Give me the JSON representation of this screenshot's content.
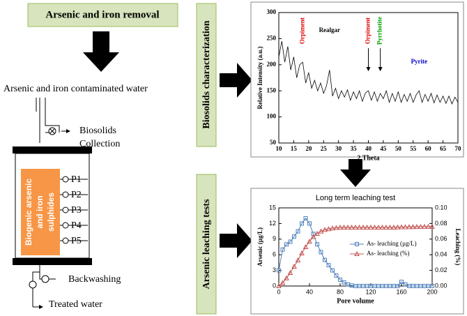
{
  "header": {
    "title": "Arsenic and iron removal"
  },
  "reactor": {
    "inlet": "Arsenic and iron contaminated water",
    "biosolids": [
      "Biosolids",
      "Collection"
    ],
    "bed": [
      "Biogenic arsenic",
      "and iron",
      "sulphides"
    ],
    "ports": [
      "P1",
      "P2",
      "P3",
      "P4",
      "P5"
    ],
    "backwashing": "Backwashing",
    "outlet": "Treated water"
  },
  "side_labels": [
    "Biosolids characterization",
    "Arsenic leaching tests"
  ],
  "chart_data": [
    {
      "type": "line",
      "xlabel": "2 Theta",
      "ylabel": "Relative Intensity (a.u.)",
      "x": [
        10,
        11,
        12,
        13,
        14,
        15,
        16,
        17,
        18,
        19,
        20,
        21,
        22,
        23,
        24,
        25,
        26,
        27,
        28,
        29,
        30,
        31,
        32,
        33,
        34,
        35,
        36,
        37,
        38,
        39,
        40,
        41,
        42,
        43,
        44,
        45,
        46,
        47,
        48,
        49,
        50,
        51,
        52,
        53,
        54,
        55,
        56,
        57,
        58,
        59,
        60,
        61,
        62,
        63,
        64,
        65,
        66,
        67,
        68,
        69,
        70
      ],
      "series": [
        {
          "color": "#000000",
          "values": [
            215,
            245,
            205,
            235,
            190,
            215,
            175,
            200,
            205,
            165,
            185,
            155,
            170,
            150,
            165,
            145,
            160,
            190,
            140,
            155,
            135,
            150,
            138,
            152,
            132,
            148,
            135,
            150,
            130,
            146,
            150,
            132,
            148,
            130,
            145,
            135,
            150,
            128,
            145,
            130,
            148,
            128,
            143,
            130,
            145,
            128,
            142,
            150,
            128,
            143,
            130,
            145,
            127,
            142,
            128,
            140,
            126,
            140,
            125,
            138,
            128
          ]
        }
      ],
      "xlim": [
        10,
        70
      ],
      "xticks": [
        10,
        15,
        20,
        25,
        30,
        35,
        40,
        45,
        50,
        55,
        60,
        65,
        70
      ],
      "ylim": [
        50,
        300
      ],
      "yticks": [
        50,
        100,
        150,
        200,
        250,
        300
      ],
      "annotations": [
        {
          "text": "Orpiment",
          "x": 18,
          "y": 265,
          "color": "#e00000"
        },
        {
          "text": "Realgar",
          "x": 27,
          "y": 265,
          "color": "#000000"
        },
        {
          "text": "Orpiment",
          "x": 40,
          "y": 265,
          "color": "#e00000",
          "arrow": true
        },
        {
          "text": "Pyrrhotite",
          "x": 44,
          "y": 265,
          "color": "#00a000",
          "arrow": true
        },
        {
          "text": "Pyrite",
          "x": 57,
          "y": 205,
          "color": "#0000cc"
        }
      ]
    },
    {
      "type": "line",
      "title": "Long term leaching test",
      "xlabel": "Pore volume",
      "ylabel": "Arsenic (µg/L)",
      "y2label": "Leaching (%)",
      "x": [
        0,
        5,
        10,
        15,
        20,
        25,
        30,
        35,
        40,
        45,
        50,
        55,
        60,
        65,
        70,
        75,
        80,
        85,
        90,
        95,
        100,
        105,
        110,
        115,
        120,
        125,
        130,
        135,
        140,
        145,
        150,
        155,
        160,
        165,
        170,
        175,
        180,
        185,
        190,
        195,
        200
      ],
      "series": [
        {
          "name": "As- leaching (µg/L)",
          "color": "#4f81bd",
          "marker": "square",
          "values": [
            3,
            7,
            8,
            8.5,
            9.5,
            10.5,
            12,
            13,
            12,
            10,
            8,
            6.5,
            5,
            4,
            3,
            2,
            1.2,
            0.7,
            0.3,
            0.1,
            0,
            0,
            0,
            0,
            0,
            0,
            0,
            0,
            0,
            0,
            0,
            0,
            0.8,
            0.3,
            0,
            0,
            0,
            0,
            0,
            0,
            0
          ]
        },
        {
          "name": "As- leaching (%)",
          "color": "#c0504d",
          "marker": "triangle",
          "axis": "y2",
          "values": [
            0,
            0.004,
            0.01,
            0.017,
            0.025,
            0.033,
            0.042,
            0.05,
            0.057,
            0.063,
            0.067,
            0.07,
            0.072,
            0.073,
            0.074,
            0.0745,
            0.075,
            0.075,
            0.075,
            0.075,
            0.075,
            0.075,
            0.075,
            0.075,
            0.075,
            0.075,
            0.075,
            0.075,
            0.075,
            0.075,
            0.075,
            0.0752,
            0.0754,
            0.0755,
            0.0756,
            0.0757,
            0.0758,
            0.0759,
            0.076,
            0.076,
            0.076
          ]
        }
      ],
      "xlim": [
        0,
        200
      ],
      "xticks": [
        0,
        40,
        80,
        120,
        160,
        200
      ],
      "ylim": [
        0,
        15
      ],
      "yticks": [
        0,
        3,
        6,
        9,
        12,
        15
      ],
      "y2lim": [
        0,
        0.1
      ],
      "y2ticks": [
        {
          "value": 0,
          "label": "0.00"
        },
        {
          "value": 0.02,
          "label": "0.02"
        },
        {
          "value": 0.04,
          "label": "0.04"
        },
        {
          "value": 0.06,
          "label": "0.06"
        },
        {
          "value": 0.08,
          "label": "0.08"
        },
        {
          "value": 0.1,
          "label": "0.10"
        }
      ],
      "legend": "right"
    }
  ]
}
